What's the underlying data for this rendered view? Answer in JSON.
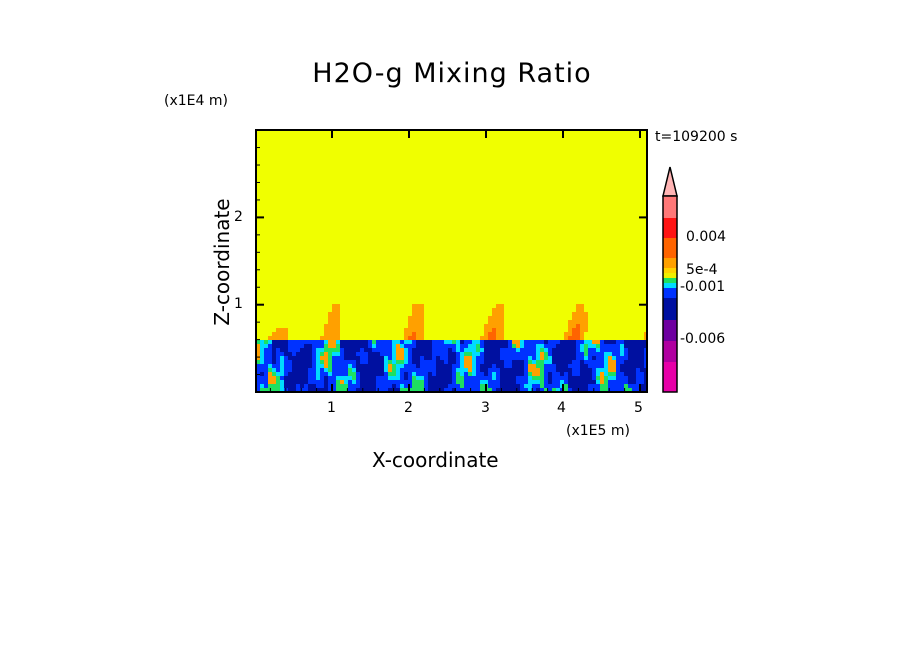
{
  "chart_data": {
    "type": "heatmap",
    "title": "H2O-g Mixing Ratio",
    "xlabel": "X-coordinate",
    "ylabel": "Z-coordinate",
    "x_unit": "(x1E5 m)",
    "y_unit": "(x1E4 m)",
    "time_label": "t=109200 s",
    "xlim": [
      0,
      5.1
    ],
    "ylim": [
      0,
      3.0
    ],
    "xticks": [
      "1",
      "2",
      "3",
      "4",
      "5"
    ],
    "yticks": [
      "1",
      "2"
    ],
    "grid": false,
    "colorbar": {
      "position": "right",
      "labels": [
        "0.004",
        "5e-4",
        "-0.001",
        "-0.006"
      ],
      "colors_top_to_bottom": [
        "#ff7878",
        "#ff1414",
        "#ff6400",
        "#ffa000",
        "#ffd200",
        "#f0f000",
        "#1ee060",
        "#00dcff",
        "#0032ff",
        "#0010a0",
        "#6e00a0",
        "#b000a0",
        "#e800a8"
      ],
      "extend_color": "#ffb4b4"
    },
    "field_description_colors": {
      "background": "#f0ff00",
      "low_layer": "#0010a0"
    }
  }
}
